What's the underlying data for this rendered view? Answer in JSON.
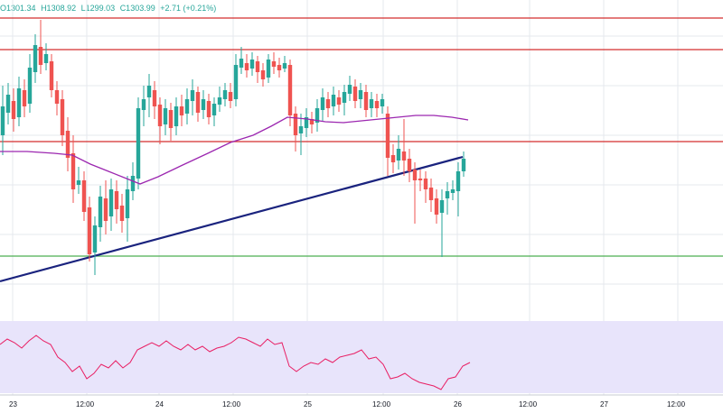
{
  "header": {
    "open": "O1301.34",
    "high": "H1308.92",
    "low": "L1299.03",
    "close": "C1303.99",
    "change": "+2.71 (+0.21%)",
    "color": "#26a69a"
  },
  "colors": {
    "up": "#26a69a",
    "down": "#ef5350",
    "ma": "#9c27b0",
    "resistance": "#d32f2f",
    "support": "#4caf50",
    "trendline": "#1a237e",
    "rsi_line": "#e91e63",
    "rsi_band": "#e8e4fb",
    "grid": "#e6e9ee"
  },
  "x_axis": {
    "labels": [
      "23",
      "12:00",
      "24",
      "12:00",
      "25",
      "12:00",
      "26",
      "12:00",
      "27",
      "12:00"
    ]
  },
  "chart_data": {
    "type": "candlestick",
    "y_axis_printed": false,
    "horizontal_lines": [
      "resistance",
      "resistance",
      "resistance",
      "support"
    ],
    "trendline": "rising",
    "indicator_panel": "oscillator"
  }
}
